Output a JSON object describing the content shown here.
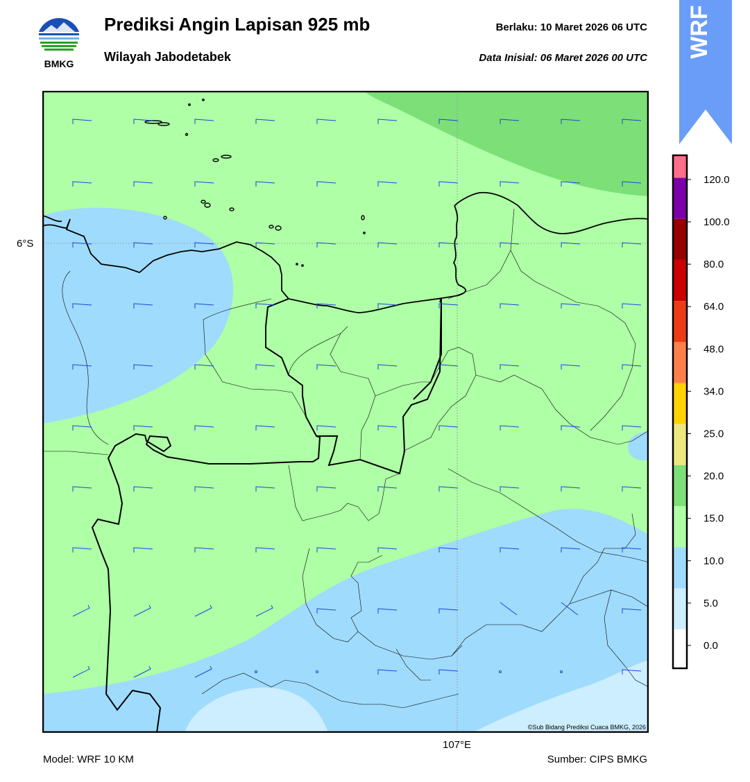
{
  "header": {
    "title": "Prediksi Angin Lapisan 925 mb",
    "subtitle": "Wilayah Jabodetabek",
    "valid": "Berlaku:  10 Maret 2026 06 UTC",
    "init": "Data Inisial:  06 Maret 2026 00 UTC"
  },
  "logo": {
    "text": "BMKG"
  },
  "banner": {
    "text": "WRF",
    "color": "#6a9df8"
  },
  "map": {
    "lat_label": "6°S",
    "lon_label": "107°E",
    "copyright": "©Sub Bidang Prediksi Cuaca BMKG, 2026",
    "barb_color": "#1f3fe6",
    "coast_color": "#000000"
  },
  "footer": {
    "model": "Model: WRF 10 KM",
    "source": "Sumber: CIPS BMKG"
  },
  "colorbar": {
    "labels": [
      "0.0",
      "5.0",
      "10.0",
      "15.0",
      "20.0",
      "25.0",
      "34.0",
      "48.0",
      "64.0",
      "80.0",
      "100.0",
      "120.0"
    ],
    "colors": [
      "#ffffff",
      "#cceeff",
      "#9fdbfc",
      "#aeffa6",
      "#7ddf78",
      "#ebe87e",
      "#ffd200",
      "#ff7f4a",
      "#ee3a15",
      "#cc0000",
      "#990000",
      "#7a00a8",
      "#ff6e8a"
    ]
  }
}
